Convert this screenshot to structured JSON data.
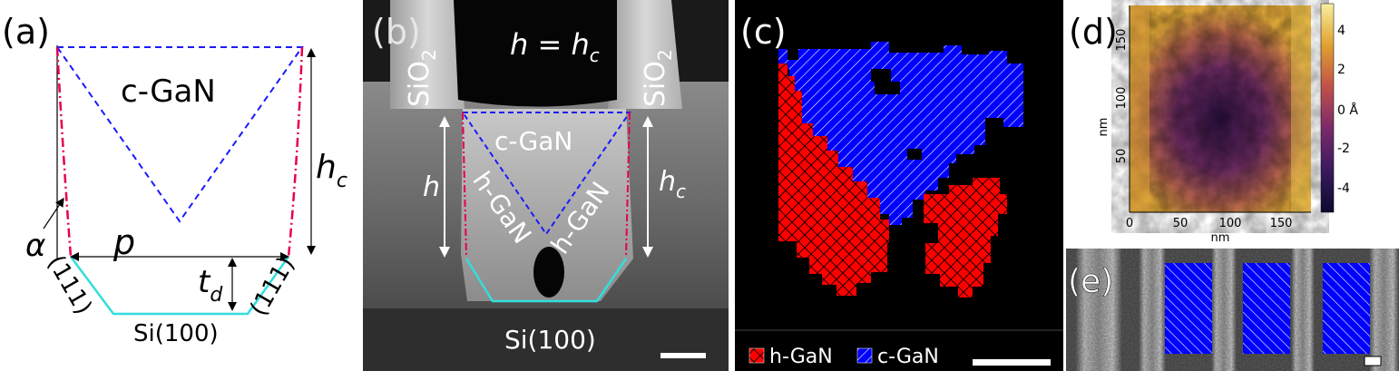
{
  "panel_a": {
    "label": "(a)",
    "c_gan": "c-GaN",
    "h_c": "h",
    "h_c_sub": "c",
    "alpha": "α",
    "p": "p",
    "t_d": "t",
    "t_d_sub": "d",
    "facet_left": "(111)",
    "facet_right": "(111)",
    "substrate": "Si(100)"
  },
  "panel_b": {
    "label": "(b)",
    "h_eq": "h = h",
    "h_eq_sub": "c",
    "sio2_left": "SiO",
    "sio2_left_sub": "2",
    "sio2_right": "SiO",
    "sio2_right_sub": "2",
    "c_gan": "c-GaN",
    "h_gan_left": "h-GaN",
    "h_gan_right": "h-GaN",
    "h": "h",
    "h_c": "h",
    "h_c_sub": "c",
    "substrate": "Si(100)"
  },
  "panel_c": {
    "label": "(c)",
    "legend": [
      {
        "name": "h-GaN",
        "color": "#ff0000"
      },
      {
        "name": "c-GaN",
        "color": "#0000ff"
      }
    ]
  },
  "panel_d": {
    "label": "(d)",
    "y_ticks": [
      "150",
      "100",
      "50"
    ],
    "x_ticks": [
      "0",
      "50",
      "100",
      "150"
    ],
    "x_label": "nm",
    "y_label": "nm",
    "colorbar_ticks": [
      "4",
      "2",
      "0 Å",
      "-2",
      "-4"
    ]
  },
  "panel_e": {
    "label": "(e)"
  },
  "colors": {
    "blue_dash": "#1a1aff",
    "red_dashdot": "#e8004a",
    "cyan": "#33dddd",
    "h_gan_red": "#ff0000",
    "c_gan_blue": "#0000ff"
  }
}
